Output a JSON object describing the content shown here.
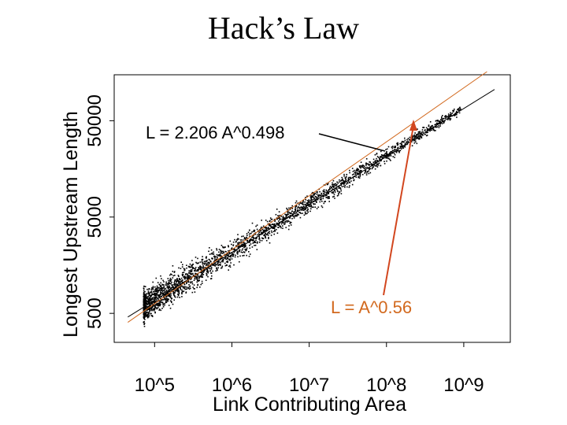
{
  "chart_data": {
    "type": "scatter",
    "title": "Hack’s Law",
    "xlabel": "Link Contributing Area",
    "ylabel": "Longest Upstream Length",
    "x_scale": "log",
    "y_scale": "log",
    "xlim": [
      30000,
      4000000000
    ],
    "ylim": [
      250,
      150000
    ],
    "x_ticks": [
      100000,
      1000000,
      10000000,
      100000000,
      1000000000
    ],
    "x_tick_labels": [
      "10^5",
      "10^6",
      "10^7",
      "10^8",
      "10^9"
    ],
    "y_ticks": [
      500,
      5000,
      50000
    ],
    "y_tick_labels": [
      "500",
      "5000",
      "50000"
    ],
    "grid": false,
    "fits": [
      {
        "label": "L = 2.206 A^0.498",
        "coef": 2.206,
        "exponent": 0.498,
        "color": "#000000"
      },
      {
        "label": "L = A^0.56",
        "coef": 1.0,
        "exponent": 0.56,
        "color": "#d2691e"
      }
    ],
    "scatter_color": "#000000"
  }
}
